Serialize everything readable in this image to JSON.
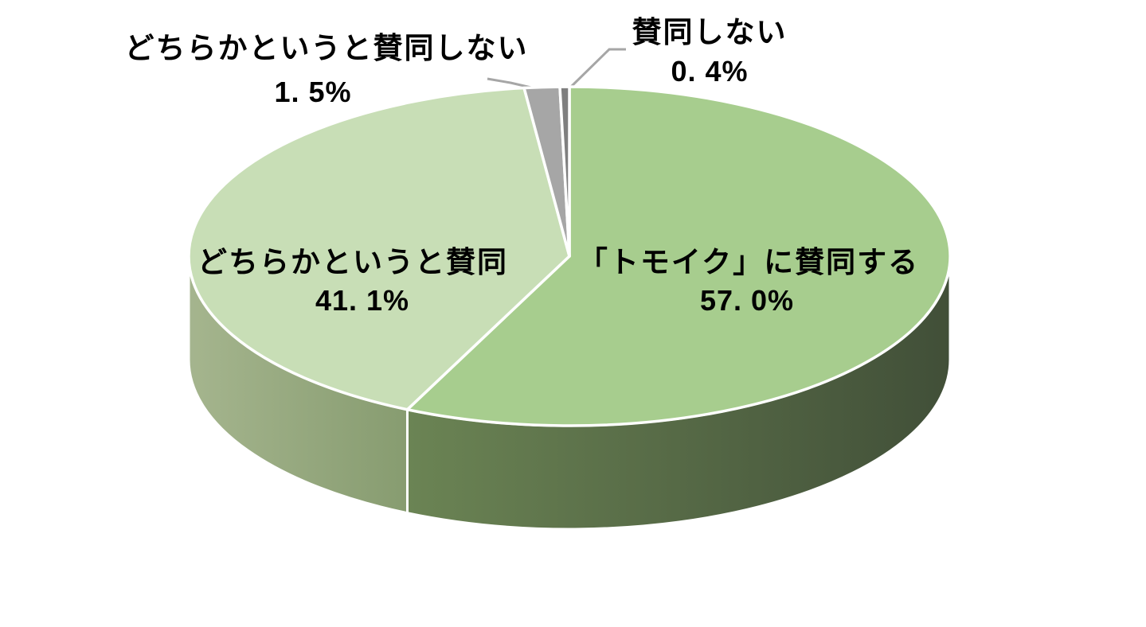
{
  "background_color": "#ffffff",
  "chart_data": {
    "type": "pie",
    "style": "3d-pie",
    "title": "",
    "start_angle_deg": 0,
    "direction": "clockwise",
    "legend": "none",
    "separator_color": "#ffffff",
    "leader_line_color": "#a6a6a6",
    "text_color": "#000000",
    "slices": [
      {
        "label": "「トモイク」に賛同する",
        "value": 57.0,
        "pct_label": "57. 0%",
        "color": "#a7cd8e",
        "side_from": "#6b8454",
        "side_to": "#414f38",
        "label_placement": "inside-right"
      },
      {
        "label": "どちらかというと賛同",
        "value": 41.1,
        "pct_label": "41. 1%",
        "color": "#c8deb6",
        "side_from": "#a5b58e",
        "side_to": "#879c70",
        "label_placement": "inside-left"
      },
      {
        "label": "どちらかというと賛同しない",
        "value": 1.5,
        "pct_label": "1. 5%",
        "color": "#a6a6a6",
        "side_from": "#9a9a9a",
        "side_to": "#9a9a9a",
        "label_placement": "outside-top-left"
      },
      {
        "label": "賛同しない",
        "value": 0.4,
        "pct_label": "0. 4%",
        "color": "#7f7f7f",
        "side_from": "#777777",
        "side_to": "#777777",
        "label_placement": "outside-top-right"
      }
    ]
  }
}
